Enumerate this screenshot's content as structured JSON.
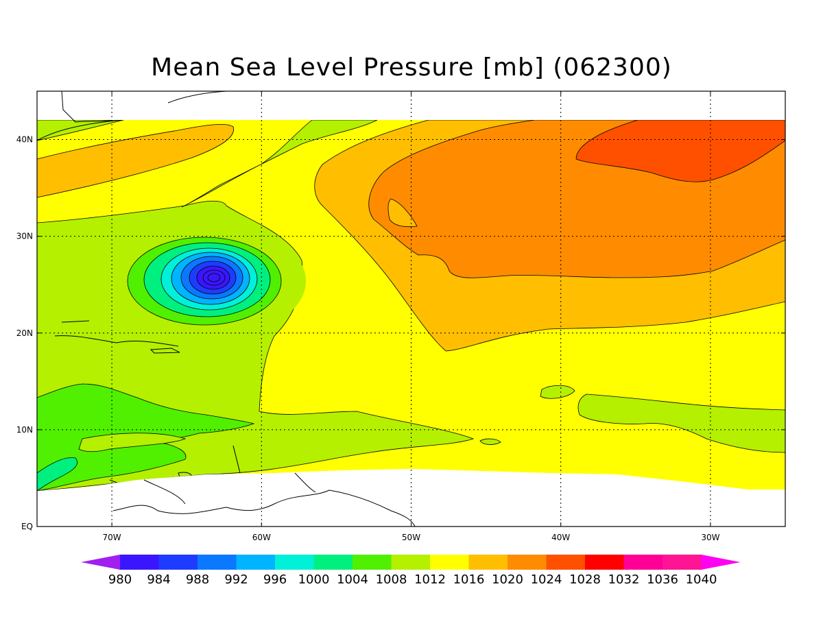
{
  "title": "Mean Sea Level Pressure [mb] (062300)",
  "chart_data": {
    "type": "heatmap",
    "title": "Mean Sea Level Pressure [mb] (062300)",
    "x_ticks": [
      "70W",
      "60W",
      "50W",
      "40W",
      "30W"
    ],
    "x_tick_values": [
      -70,
      -60,
      -50,
      -40,
      -30
    ],
    "y_ticks": [
      "40N",
      "30N",
      "20N",
      "10N",
      "EQ"
    ],
    "y_tick_values": [
      40,
      30,
      20,
      10,
      0
    ],
    "xlim": [
      -75,
      -25
    ],
    "ylim": [
      0,
      45
    ],
    "grid": true,
    "contour_interval_mb": 4,
    "colorbar_levels": [
      "980",
      "984",
      "988",
      "992",
      "996",
      "1000",
      "1004",
      "1008",
      "1012",
      "1016",
      "1020",
      "1024",
      "1028",
      "1032",
      "1036",
      "1040"
    ],
    "colorbar_colors": [
      "#a020f0",
      "#3a16ff",
      "#1e3cff",
      "#0a78ff",
      "#00b4ff",
      "#00f0d8",
      "#00f080",
      "#50f000",
      "#b4f000",
      "#ffff00",
      "#ffbe00",
      "#ff8c00",
      "#ff5000",
      "#ff0000",
      "#ff0096",
      "#ff1493",
      "#ff00f0"
    ],
    "features": [
      {
        "type": "low",
        "lon": -63.5,
        "lat": 25.5,
        "min_mb": 980
      }
    ]
  }
}
